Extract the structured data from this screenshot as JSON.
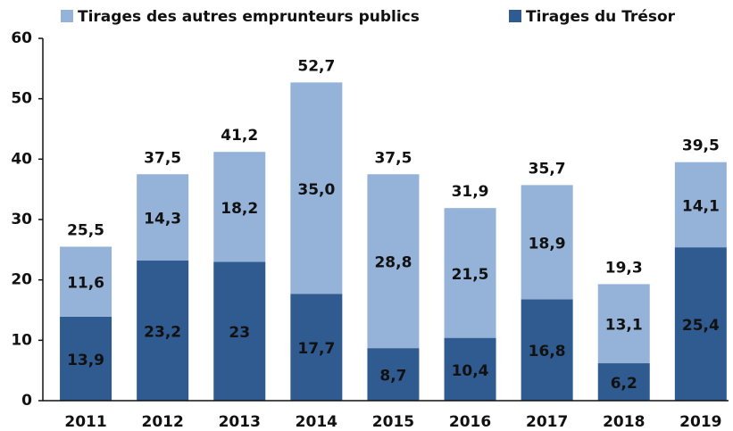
{
  "chart_data": {
    "type": "stacked_bar",
    "categories": [
      "2011",
      "2012",
      "2013",
      "2014",
      "2015",
      "2016",
      "2017",
      "2018",
      "2019"
    ],
    "series": [
      {
        "name": "Tirages du Trésor",
        "color": "#2f5b90",
        "values": [
          13.9,
          23.2,
          23,
          17.7,
          8.7,
          10.4,
          16.8,
          6.2,
          25.4
        ],
        "value_labels": [
          "13,9",
          "23,2",
          "23",
          "17,7",
          "8,7",
          "10,4",
          "16,8",
          "6,2",
          "25,4"
        ]
      },
      {
        "name": "Tirages des autres emprunteurs publics",
        "color": "#95b3d8",
        "values": [
          11.6,
          14.3,
          18.2,
          35.0,
          28.8,
          21.5,
          18.9,
          13.1,
          14.1
        ],
        "value_labels": [
          "11,6",
          "14,3",
          "18,2",
          "35,0",
          "28,8",
          "21,5",
          "18,9",
          "13,1",
          "14,1"
        ]
      }
    ],
    "total_labels": [
      "25,5",
      "37,5",
      "41,2",
      "52,7",
      "37,5",
      "31,9",
      "35,7",
      "19,3",
      "39,5"
    ],
    "ylim": [
      0,
      60
    ],
    "yticks": [
      0,
      10,
      20,
      30,
      40,
      50,
      60
    ]
  }
}
